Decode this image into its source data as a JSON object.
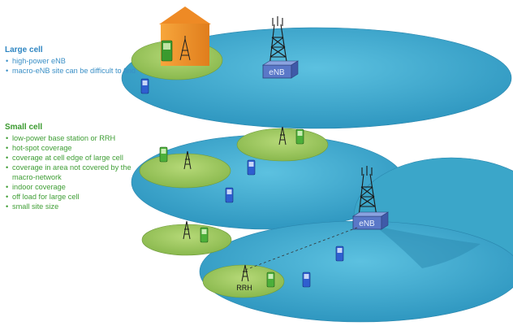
{
  "large_cell": {
    "title": "Large cell",
    "bullets": [
      "high-power eNB",
      "macro-eNB site can be difficult to find"
    ]
  },
  "small_cell": {
    "title": "Small cell",
    "bullets": [
      "low-power base station or RRH",
      "hot-spot coverage",
      "coverage at cell edge of large cell",
      "coverage  in area not covered by the macro-network",
      "indoor coverage",
      "off load for large cell",
      "small site size"
    ]
  },
  "diagram": {
    "enb_label_top": "eNB",
    "enb_label_right": "eNB",
    "rrh_label": "RRH",
    "colors": {
      "macro_cell": "#3aa7cc",
      "small_cell": "#97c45a",
      "enb_box": "#5a78c8",
      "house_wall": "#f0902a",
      "phone_green": "#4caf3a",
      "phone_blue": "#2f5fd0"
    }
  }
}
